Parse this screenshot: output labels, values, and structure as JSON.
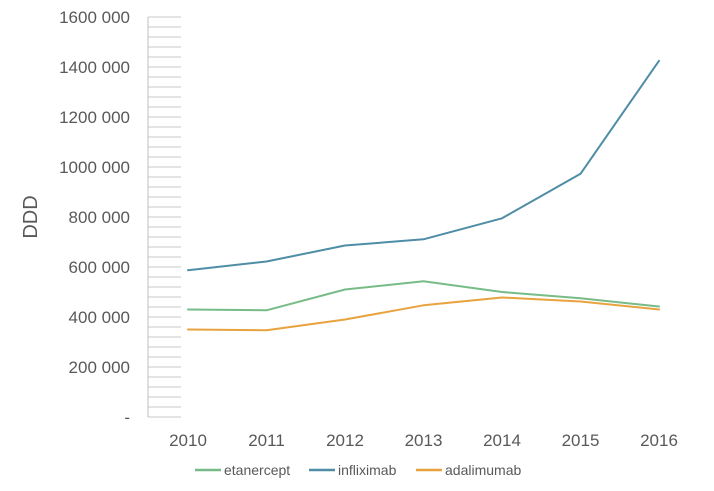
{
  "chart_data": {
    "type": "line",
    "title": "",
    "xlabel": "",
    "ylabel": "DDD",
    "categories": [
      "2010",
      "2011",
      "2012",
      "2013",
      "2014",
      "2015",
      "2016"
    ],
    "ylim": [
      0,
      1600000
    ],
    "yticks": [
      0,
      200000,
      400000,
      600000,
      800000,
      1000000,
      1200000,
      1400000,
      1600000
    ],
    "ytick_labels": [
      "-",
      "200 000",
      "400 000",
      "600 000",
      "800 000",
      "1000 000",
      "1200 000",
      "1400 000",
      "1600 000"
    ],
    "grid": false,
    "legend_position": "bottom",
    "series": [
      {
        "name": "etanercept",
        "color": "#77bb87",
        "values": [
          430000,
          427000,
          510000,
          543000,
          500000,
          475000,
          442000
        ]
      },
      {
        "name": "infliximab",
        "color": "#4e8da5",
        "values": [
          587000,
          622000,
          686000,
          711000,
          795000,
          973000,
          1425000
        ]
      },
      {
        "name": "adalimumab",
        "color": "#e8a23e",
        "values": [
          350000,
          347000,
          390000,
          447000,
          478000,
          462000,
          430000
        ]
      }
    ]
  }
}
